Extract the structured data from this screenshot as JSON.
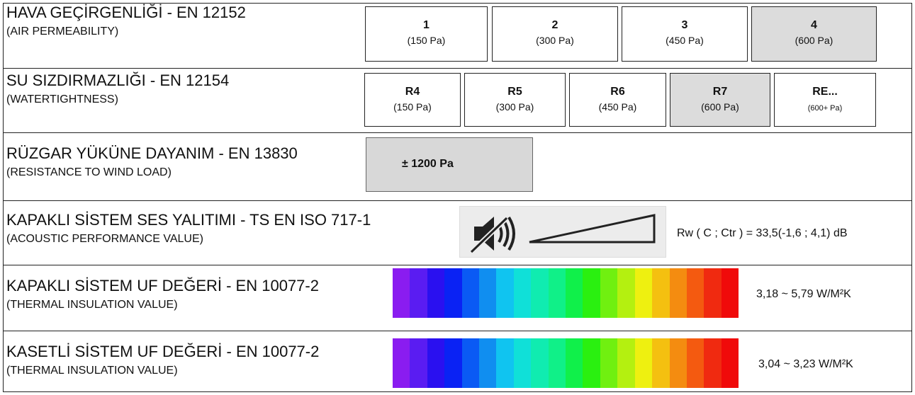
{
  "rows": {
    "air": {
      "title": "HAVA GEÇİRGENLİĞİ - EN 12152",
      "subtitle": "(AIR PERMEABILITY)",
      "classes": [
        {
          "code": "1",
          "pa": "(150 Pa)",
          "highlight": false
        },
        {
          "code": "2",
          "pa": "(300 Pa)",
          "highlight": false
        },
        {
          "code": "3",
          "pa": "(450 Pa)",
          "highlight": false
        },
        {
          "code": "4",
          "pa": "(600 Pa)",
          "highlight": true
        }
      ]
    },
    "water": {
      "title": "SU SIZDIRMAZLIĞI - EN 12154",
      "subtitle": "(WATERTIGHTNESS)",
      "classes": [
        {
          "code": "R4",
          "pa": "(150 Pa)",
          "highlight": false
        },
        {
          "code": "R5",
          "pa": "(300 Pa)",
          "highlight": false
        },
        {
          "code": "R6",
          "pa": "(450 Pa)",
          "highlight": false
        },
        {
          "code": "R7",
          "pa": "(600 Pa)",
          "highlight": true
        },
        {
          "code": "RE...",
          "pa": "(600+ Pa)",
          "highlight": false
        }
      ]
    },
    "wind": {
      "title": "RÜZGAR YÜKÜNE DAYANIM - EN 13830",
      "subtitle": "(RESISTANCE TO WIND LOAD)",
      "value": "± 1200 Pa"
    },
    "acoustic": {
      "title": "KAPAKLI SİSTEM SES YALITIMI - TS EN ISO 717-1",
      "subtitle": "(ACOUSTIC PERFORMANCE VALUE)",
      "value": "Rw ( C  ; Ctr ) = 33,5(-1,6 ; 4,1) dB",
      "icon": "mute-speaker-icon"
    },
    "uf_capped": {
      "title": "KAPAKLI SİSTEM UF DEĞERİ - EN 10077-2",
      "subtitle": "(THERMAL INSULATION VALUE)",
      "value": "3,18 ~ 5,79 W/M²K"
    },
    "uf_cassette": {
      "title": "KASETLİ SİSTEM UF DEĞERİ - EN 10077-2",
      "subtitle": "(THERMAL INSULATION VALUE)",
      "value": "3,04 ~ 3,23 W/M²K"
    }
  },
  "colors": {
    "highlight": "#dcdcdc",
    "spectrum": [
      "#8a1cf0",
      "#5a1cf2",
      "#2a10f0",
      "#0a22f4",
      "#0a5af4",
      "#108ef0",
      "#10c4f0",
      "#10e0d8",
      "#10ecb0",
      "#10f088",
      "#10f04a",
      "#2af010",
      "#70f010",
      "#b4f010",
      "#eef010",
      "#f4c010",
      "#f48c10",
      "#f45a10",
      "#f02a10",
      "#f00a0a"
    ]
  }
}
